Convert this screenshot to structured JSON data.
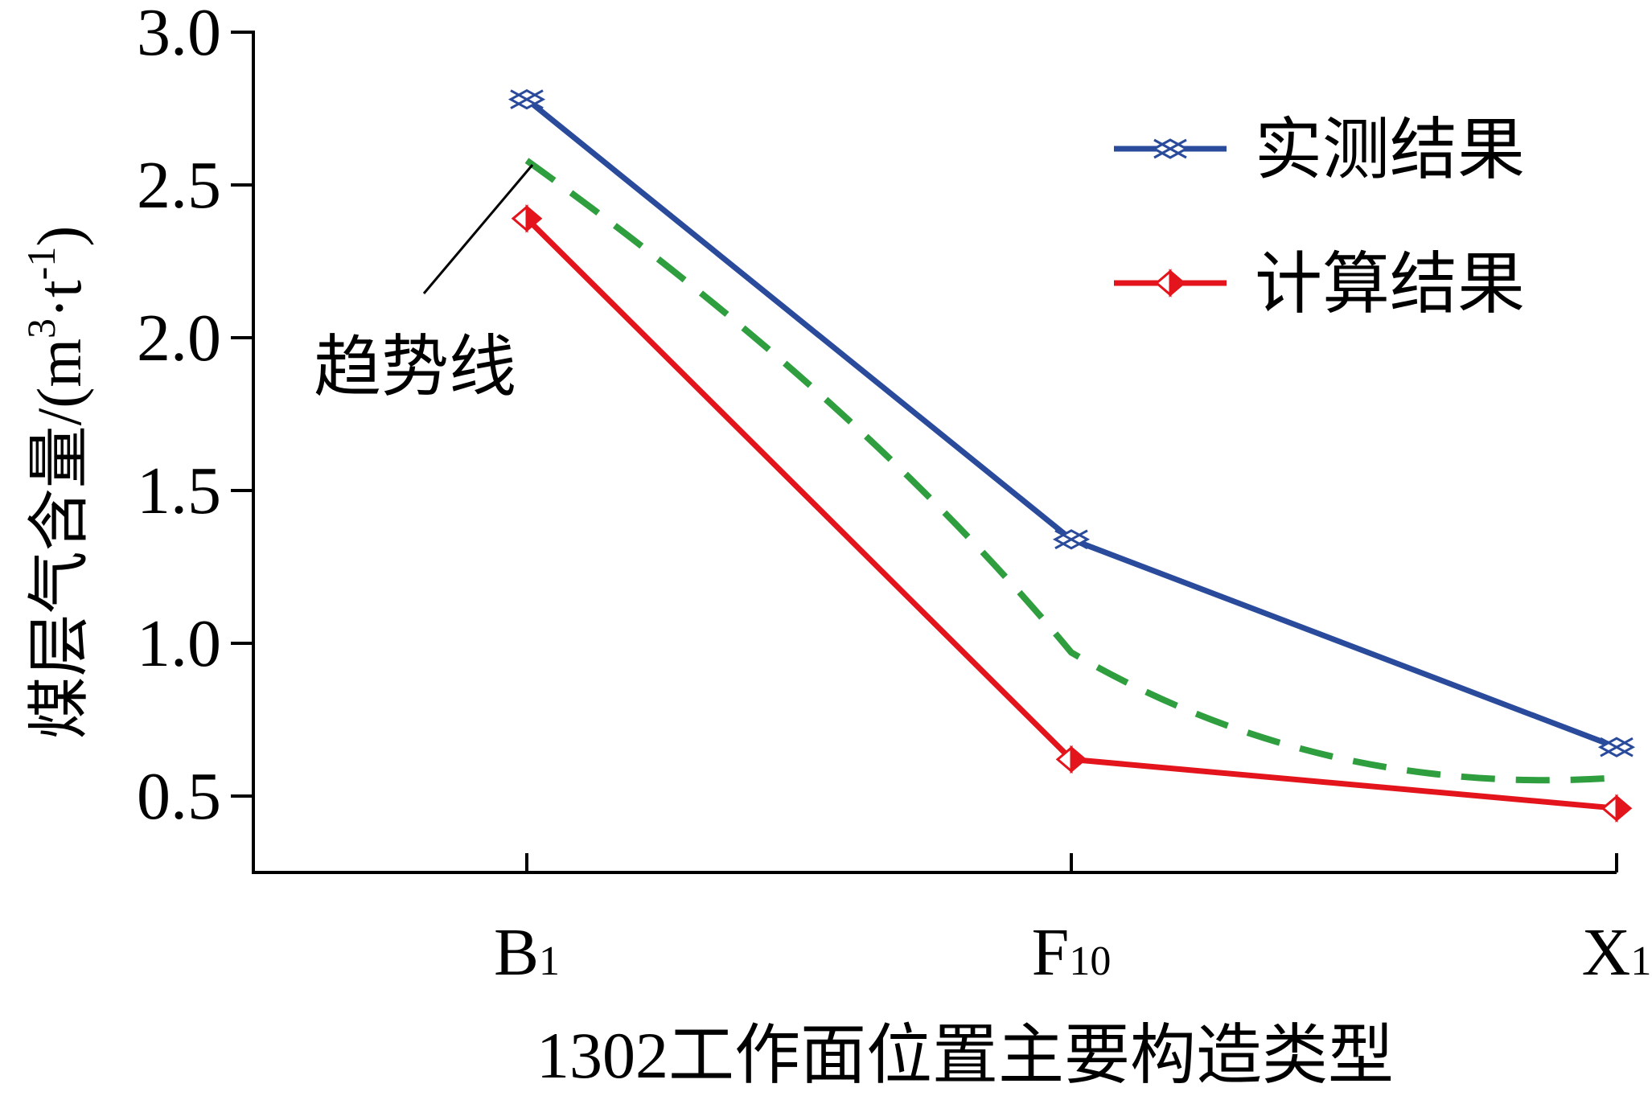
{
  "chart_data": {
    "type": "line",
    "title": "",
    "xlabel": "1302工作面位置主要构造类型",
    "ylabel": "煤层气含量/(m³·t⁻¹)",
    "ylabel_main": "煤层气含量/(m",
    "ylabel_sup1": "3",
    "ylabel_mid": "·t",
    "ylabel_sup2": "-1",
    "ylabel_end": ")",
    "categories": [
      {
        "main": "B",
        "sub": "1"
      },
      {
        "main": "F",
        "sub": "10"
      },
      {
        "main": "X",
        "sub": "1"
      }
    ],
    "ylim": [
      0.25,
      3.0
    ],
    "yticks": [
      "3.0",
      "2.5",
      "2.0",
      "1.5",
      "1.0",
      "0.5"
    ],
    "grid": false,
    "legend_position": "top-right",
    "series": [
      {
        "name": "实测结果",
        "values": [
          2.78,
          1.34,
          0.66
        ],
        "color": "#2a4b9b",
        "marker": "crossed-diamond"
      },
      {
        "name": "计算结果",
        "values": [
          2.39,
          0.62,
          0.46
        ],
        "color": "#e3141b",
        "marker": "half-filled-diamond"
      }
    ],
    "trendline": {
      "values": [
        2.58,
        0.97,
        0.56
      ],
      "color": "#2e9e3e",
      "style": "dashed"
    },
    "annotation": {
      "text": "趋势线"
    }
  }
}
